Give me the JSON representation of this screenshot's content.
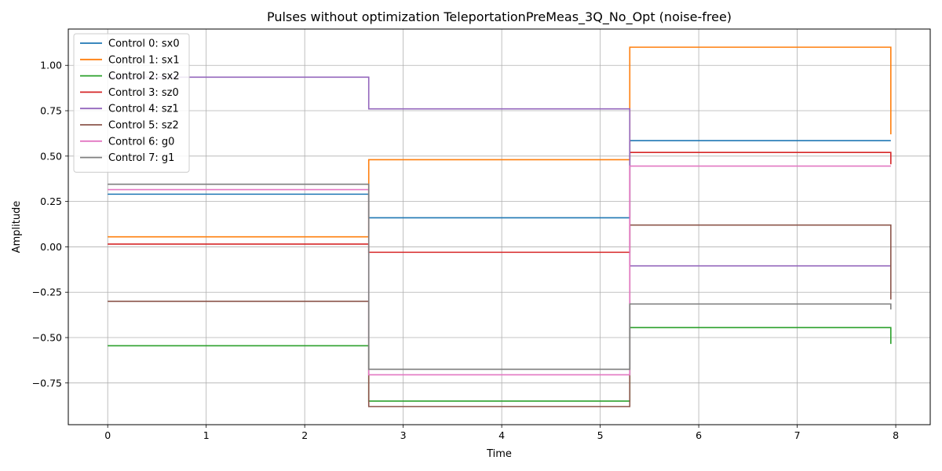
{
  "chart_data": {
    "type": "line",
    "step": "post",
    "title": "Pulses without optimization TeleportationPreMeas_3Q_No_Opt (noise-free)",
    "xlabel": "Time",
    "ylabel": "Amplitude",
    "xlim": [
      -0.4,
      8.35
    ],
    "ylim": [
      -0.98,
      1.2
    ],
    "xticks": [
      0,
      1,
      2,
      3,
      4,
      5,
      6,
      7,
      8
    ],
    "yticks": [
      -0.75,
      -0.5,
      -0.25,
      0.0,
      0.25,
      0.5,
      0.75,
      1.0
    ],
    "ytick_labels": [
      "−0.75",
      "−0.50",
      "−0.25",
      "0.00",
      "0.25",
      "0.50",
      "0.75",
      "1.00"
    ],
    "grid": true,
    "legend_position": "top-left",
    "x": [
      0,
      2.65,
      5.3,
      7.95
    ],
    "series": [
      {
        "name": "Control 0: sx0",
        "color": "#1f77b4",
        "values": [
          0.29,
          0.16,
          0.585,
          0.585
        ]
      },
      {
        "name": "Control 1: sx1",
        "color": "#ff7f0e",
        "values": [
          0.055,
          0.48,
          1.1,
          0.62
        ]
      },
      {
        "name": "Control 2: sx2",
        "color": "#2ca02c",
        "values": [
          -0.545,
          -0.85,
          -0.445,
          -0.535
        ]
      },
      {
        "name": "Control 3: sz0",
        "color": "#d62728",
        "values": [
          0.015,
          -0.03,
          0.52,
          0.455
        ]
      },
      {
        "name": "Control 4: sz1",
        "color": "#9467bd",
        "values": [
          0.935,
          0.76,
          -0.105,
          -0.105
        ]
      },
      {
        "name": "Control 5: sz2",
        "color": "#8c564b",
        "values": [
          -0.3,
          -0.88,
          0.12,
          -0.29
        ]
      },
      {
        "name": "Control 6: g0",
        "color": "#e377c2",
        "values": [
          0.315,
          -0.705,
          0.445,
          0.445
        ]
      },
      {
        "name": "Control 7: g1",
        "color": "#7f7f7f",
        "values": [
          0.345,
          -0.675,
          -0.315,
          -0.345
        ]
      }
    ]
  }
}
